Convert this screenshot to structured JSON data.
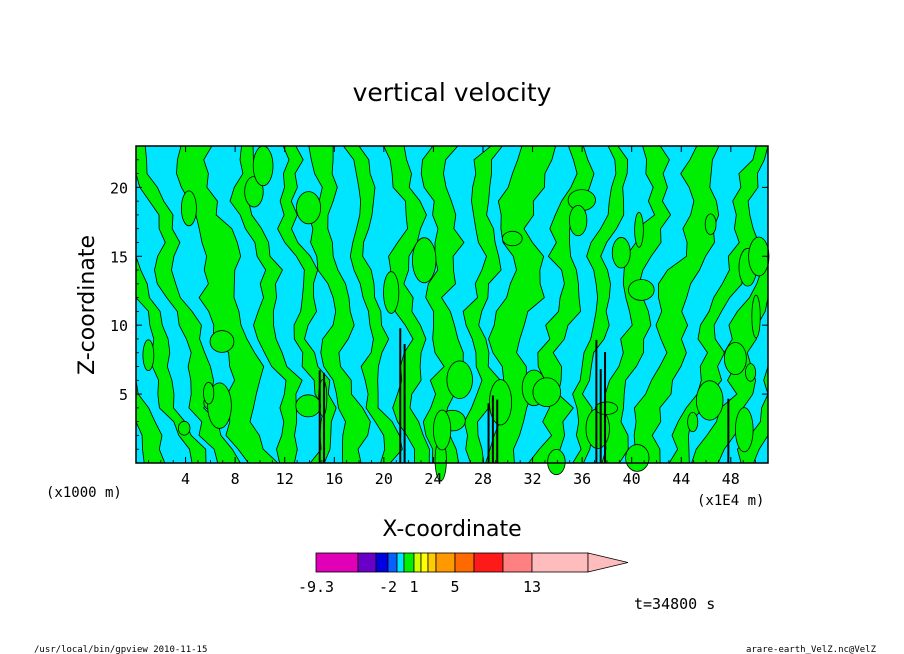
{
  "footer": {
    "left": "/usr/local/bin/gpview   2010-11-15",
    "right": "arare-earth_VelZ.nc@VelZ"
  },
  "colors": {
    "neg_strong": "#e000b8",
    "neg": "#6a00c8",
    "blue": "#0000e0",
    "mid_blue": "#0a60ff",
    "cyan": "#00e5ff",
    "green": "#00ee00",
    "yellow": "#ffff00",
    "orange": "#ff9900",
    "red": "#ff1a1a",
    "salmon": "#ff8080",
    "pink": "#ffbcbc"
  },
  "chart_data": {
    "type": "heatmap",
    "title": "vertical velocity",
    "xlabel": "X-coordinate",
    "ylabel": "Z-coordinate",
    "x_unit_left": "(x1000 m)",
    "x_unit_right": "(x1E4 m)",
    "time_label": "t=34800 s",
    "xlim": [
      0,
      51
    ],
    "ylim": [
      0,
      23
    ],
    "xticks": [
      4,
      8,
      12,
      16,
      20,
      24,
      28,
      32,
      36,
      40,
      44,
      48
    ],
    "yticks": [
      5,
      10,
      15,
      20
    ],
    "field_description": "Alternating vertical bands of cyan (near zero / weakly negative) and green (weakly positive) vertical velocity, with narrow intense updraft/downdraft columns near x=15, x=21-22, x=28-29 and x=37-38.",
    "colorbar": {
      "tick_labels": [
        "-9.3",
        "-2",
        "1",
        "5",
        "13"
      ],
      "extend": "max"
    }
  }
}
